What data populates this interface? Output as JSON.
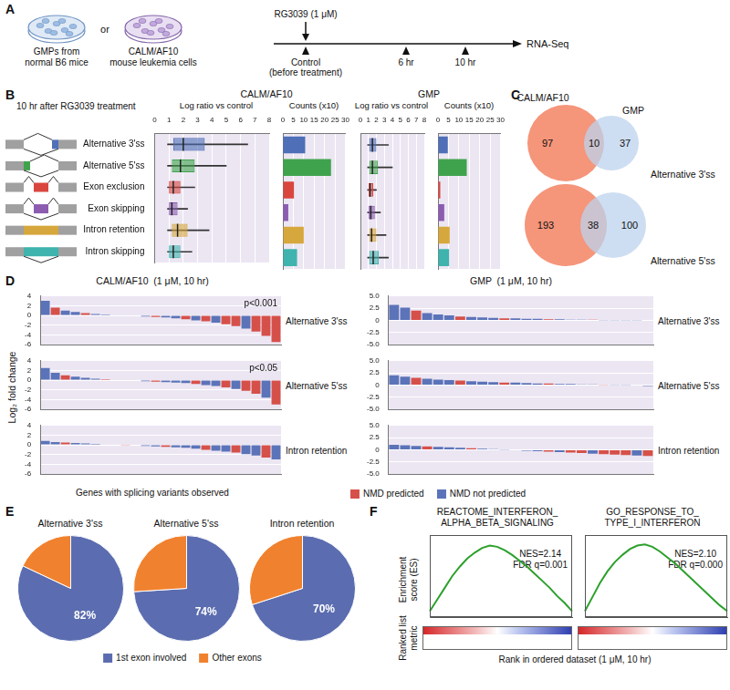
{
  "panel_labels": [
    "A",
    "B",
    "C",
    "D",
    "E",
    "F"
  ],
  "diagram_A": {
    "cells": [
      [
        "GMPs from",
        "normal B6 mice"
      ],
      [
        "CALM/AF10",
        "mouse leukemia cells"
      ]
    ],
    "connector": "or",
    "treatment": "RG3039 (1 μM)",
    "timepoints": [
      [
        "Control",
        "(before treatment)"
      ],
      [
        "6 hr"
      ],
      [
        "10 hr"
      ]
    ],
    "readout": "RNA-Seq"
  },
  "panel_B": {
    "heading": "10 hr after RG3039 treatment",
    "groups": [
      "CALM/AF10",
      "GMP"
    ]
  },
  "venn_C": [
    {
      "left": "CALM/AF10",
      "right": "GMP",
      "title": "Alternative 3'ss",
      "values": [
        97,
        10,
        37
      ]
    },
    {
      "title": "Alternative 5'ss",
      "values": [
        193,
        38,
        100
      ]
    }
  ],
  "panel_D": {
    "headers": [
      "CALM/AF10  (1 μM, 10 hr)",
      "GMP  (1 μM, 10 hr)"
    ],
    "y_label": "Log₂ fold change",
    "x_label": "Genes with splicing variants observed"
  },
  "panel_F": {
    "y_label": [
      "Enrichment",
      "score (ES)"
    ],
    "y2_label": [
      "Ranked list",
      "metric"
    ],
    "x_label": "Rank in ordered dataset (1 μM, 10 hr)"
  },
  "chart_data": [
    {
      "type": "box",
      "title": "Log ratio vs control",
      "orientation": "horizontal",
      "categories": [
        "Alternative 3'ss",
        "Alternative 5'ss",
        "Exon exclusion",
        "Exon skipping",
        "Intron retention",
        "Intron skipping"
      ],
      "boxes": [
        {
          "min": 0.9,
          "q1": 1.3,
          "median": 2.0,
          "q3": 3.5,
          "max": 6.5
        },
        {
          "min": 0.9,
          "q1": 1.2,
          "median": 1.8,
          "q3": 2.8,
          "max": 5.0
        },
        {
          "min": 0.9,
          "q1": 1.0,
          "median": 1.3,
          "q3": 1.8,
          "max": 2.8
        },
        {
          "min": 0.9,
          "q1": 1.0,
          "median": 1.2,
          "q3": 1.6,
          "max": 2.3
        },
        {
          "min": 0.9,
          "q1": 1.2,
          "median": 1.6,
          "q3": 2.3,
          "max": 3.8
        },
        {
          "min": 0.9,
          "q1": 1.0,
          "median": 1.3,
          "q3": 1.8,
          "max": 2.6
        }
      ],
      "colors": [
        "#4f6fb8",
        "#3fa34d",
        "#d9463e",
        "#8b5cb0",
        "#d6a73c",
        "#3fb3ad"
      ],
      "xlim": [
        0,
        8
      ],
      "xticks": [
        0,
        1,
        2,
        3,
        4,
        5,
        6,
        7,
        8
      ],
      "grid": true
    },
    {
      "type": "bar",
      "title": "Counts (x10)",
      "orientation": "horizontal",
      "categories": [
        "Alternative 3'ss",
        "Alternative 5'ss",
        "Exon exclusion",
        "Exon skipping",
        "Intron retention",
        "Intron skipping"
      ],
      "values": [
        10.7,
        23.1,
        5.3,
        2.6,
        10.0,
        6.8
      ],
      "colors": [
        "#4f6fb8",
        "#3fa34d",
        "#d9463e",
        "#8b5cb0",
        "#d6a73c",
        "#3fb3ad"
      ],
      "xlim": [
        0,
        30
      ],
      "xticks": [
        0,
        5,
        10,
        15,
        20,
        25,
        30
      ],
      "grid": true,
      "tick_labels": "x"
    },
    {
      "type": "box",
      "title": "Log ratio vs control",
      "orientation": "horizontal",
      "categories": [
        "Alternative 3'ss",
        "Alternative 5'ss",
        "Exon exclusion",
        "Exon skipping",
        "Intron retention",
        "Intron skipping"
      ],
      "boxes": [
        {
          "min": 0.9,
          "q1": 1.1,
          "median": 1.5,
          "q3": 2.0,
          "max": 3.5
        },
        {
          "min": 0.9,
          "q1": 1.1,
          "median": 1.5,
          "q3": 2.2,
          "max": 4.0
        },
        {
          "min": 0.9,
          "q1": 1.0,
          "median": 1.2,
          "q3": 1.6,
          "max": 2.0
        },
        {
          "min": 0.9,
          "q1": 1.0,
          "median": 1.3,
          "q3": 1.8,
          "max": 2.5
        },
        {
          "min": 0.9,
          "q1": 1.1,
          "median": 1.4,
          "q3": 2.0,
          "max": 3.2
        },
        {
          "min": 0.9,
          "q1": 1.1,
          "median": 1.6,
          "q3": 2.3,
          "max": 3.5
        }
      ],
      "colors": [
        "#4f6fb8",
        "#3fa34d",
        "#d9463e",
        "#8b5cb0",
        "#d6a73c",
        "#3fb3ad"
      ],
      "xlim": [
        0,
        8
      ],
      "xticks": [
        0,
        1,
        2,
        3,
        4,
        5,
        6,
        7,
        8
      ],
      "grid": true,
      "tick_labels": "x"
    },
    {
      "type": "bar",
      "title": "Counts (x10)",
      "orientation": "horizontal",
      "categories": [
        "Alternative 3'ss",
        "Alternative 5'ss",
        "Exon exclusion",
        "Exon skipping",
        "Intron retention",
        "Intron skipping"
      ],
      "values": [
        4.7,
        13.8,
        1.1,
        3.0,
        5.6,
        5.3
      ],
      "colors": [
        "#4f6fb8",
        "#3fa34d",
        "#d9463e",
        "#8b5cb0",
        "#d6a73c",
        "#3fb3ad"
      ],
      "xlim": [
        0,
        30
      ],
      "xticks": [
        0,
        5,
        10,
        15,
        20,
        25,
        30
      ],
      "grid": true,
      "tick_labels": "x"
    },
    {
      "type": "bar",
      "title": "Alternative 3'ss",
      "annotation": "p<0.001",
      "categories": [
        null,
        null,
        null,
        null,
        null,
        null,
        null,
        null,
        null,
        null,
        null,
        null,
        null,
        null,
        null,
        null,
        null,
        null,
        null,
        null,
        null,
        null,
        null,
        null
      ],
      "series": [
        {
          "name": "NMD predicted",
          "color": "#d6504a",
          "values": [
            null,
            1.6,
            null,
            null,
            0.5,
            null,
            null,
            0.1,
            null,
            null,
            null,
            -0.3,
            null,
            null,
            -0.8,
            null,
            -1.2,
            null,
            -1.8,
            -2.2,
            null,
            -3.3,
            -4.2,
            -5.5
          ]
        },
        {
          "name": "NMD not predicted",
          "color": "#5b73b8",
          "values": [
            3.0,
            null,
            1.0,
            0.7,
            null,
            0.3,
            0.2,
            null,
            0.0,
            -0.1,
            -0.2,
            null,
            -0.4,
            -0.6,
            null,
            -1.0,
            null,
            -1.5,
            null,
            null,
            -2.7,
            null,
            null,
            null
          ]
        }
      ],
      "ylim": [
        -6,
        4
      ],
      "yticks": [
        -6,
        -4,
        -2,
        0,
        2,
        4
      ],
      "stacked": true,
      "grid": true,
      "tick_labels": "y"
    },
    {
      "type": "bar",
      "title": "Alternative 5'ss",
      "annotation": "p<0.05",
      "categories": [
        null,
        null,
        null,
        null,
        null,
        null,
        null,
        null,
        null,
        null,
        null,
        null,
        null,
        null,
        null,
        null,
        null,
        null,
        null,
        null,
        null,
        null,
        null,
        null
      ],
      "series": [
        {
          "name": "NMD predicted",
          "color": "#d6504a",
          "values": [
            null,
            null,
            1.0,
            null,
            null,
            null,
            0.2,
            null,
            null,
            null,
            null,
            -0.3,
            null,
            null,
            null,
            -0.8,
            null,
            null,
            -1.5,
            null,
            -2.2,
            -2.8,
            null,
            -5.0
          ]
        },
        {
          "name": "NMD not predicted",
          "color": "#5b73b8",
          "values": [
            2.5,
            1.5,
            null,
            0.7,
            0.5,
            0.3,
            null,
            0.1,
            0.0,
            -0.1,
            -0.2,
            null,
            -0.4,
            -0.5,
            -0.6,
            null,
            -1.0,
            -1.2,
            null,
            -1.8,
            null,
            null,
            -3.6,
            null
          ]
        }
      ],
      "ylim": [
        -6,
        4
      ],
      "yticks": [
        -6,
        -4,
        -2,
        0,
        2,
        4
      ],
      "stacked": true,
      "grid": true,
      "tick_labels": "y"
    },
    {
      "type": "bar",
      "title": "Intron retention",
      "legend": "bottom",
      "categories": [
        null,
        null,
        null,
        null,
        null,
        null,
        null,
        null,
        null,
        null,
        null,
        null,
        null,
        null,
        null,
        null,
        null,
        null,
        null,
        null,
        null,
        null,
        null,
        null
      ],
      "series": [
        {
          "name": "NMD predicted",
          "color": "#d6504a",
          "values": [
            null,
            null,
            0.5,
            null,
            null,
            null,
            null,
            null,
            -0.05,
            null,
            null,
            null,
            -0.4,
            null,
            null,
            null,
            -1.0,
            null,
            null,
            -1.6,
            null,
            null,
            -2.6,
            null
          ]
        },
        {
          "name": "NMD not predicted",
          "color": "#5b73b8",
          "values": [
            0.8,
            0.6,
            null,
            0.4,
            0.3,
            0.2,
            0.1,
            0.0,
            null,
            -0.1,
            -0.2,
            -0.3,
            null,
            -0.5,
            -0.6,
            -0.8,
            null,
            -1.2,
            -1.4,
            null,
            -1.9,
            -2.2,
            null,
            -3.0
          ]
        }
      ],
      "ylim": [
        -6,
        4
      ],
      "yticks": [
        -6,
        -4,
        -2,
        0,
        2,
        4
      ],
      "stacked": true,
      "grid": true,
      "tick_labels": "y"
    },
    {
      "type": "bar",
      "title": "Alternative 3'ss",
      "categories": [
        null,
        null,
        null,
        null,
        null,
        null,
        null,
        null,
        null,
        null,
        null,
        null,
        null,
        null,
        null,
        null,
        null,
        null,
        null,
        null,
        null,
        null,
        null,
        null
      ],
      "series": [
        {
          "name": "NMD predicted",
          "color": "#d6504a",
          "values": [
            null,
            null,
            2.0,
            null,
            null,
            null,
            0.8,
            null,
            null,
            null,
            0.4,
            null,
            null,
            null,
            0.2,
            null,
            null,
            null,
            0.1,
            null,
            null,
            null,
            null,
            null
          ]
        },
        {
          "name": "NMD not predicted",
          "color": "#5b73b8",
          "values": [
            3.2,
            2.6,
            null,
            1.5,
            1.2,
            1.0,
            null,
            0.7,
            0.6,
            0.5,
            null,
            0.4,
            0.3,
            0.3,
            null,
            0.2,
            0.1,
            0.1,
            null,
            0.05,
            0.05,
            0.05,
            -0.05,
            -0.1
          ]
        }
      ],
      "ylim": [
        -5,
        5
      ],
      "yticks": [
        {
          "value": -5,
          "label": "-5.0"
        },
        -2.5,
        0,
        2.5,
        {
          "value": 5,
          "label": "5.0"
        }
      ],
      "stacked": true,
      "grid": true,
      "tick_labels": "y"
    },
    {
      "type": "bar",
      "title": "Alternative 5'ss",
      "categories": [
        null,
        null,
        null,
        null,
        null,
        null,
        null,
        null,
        null,
        null,
        null,
        null,
        null,
        null,
        null,
        null,
        null,
        null,
        null,
        null,
        null,
        null,
        null,
        null
      ],
      "series": [
        {
          "name": "NMD predicted",
          "color": "#d6504a",
          "values": [
            null,
            null,
            1.5,
            null,
            null,
            null,
            0.9,
            null,
            null,
            null,
            0.5,
            null,
            null,
            null,
            0.3,
            null,
            null,
            null,
            null,
            0.05,
            null,
            null,
            null,
            null
          ]
        },
        {
          "name": "NMD not predicted",
          "color": "#5b73b8",
          "values": [
            2.0,
            1.7,
            null,
            1.3,
            1.1,
            1.0,
            null,
            0.8,
            0.7,
            0.6,
            null,
            0.5,
            0.4,
            0.3,
            null,
            0.2,
            0.2,
            0.1,
            0.1,
            null,
            0.05,
            -0.05,
            -0.1,
            -0.2
          ]
        }
      ],
      "ylim": [
        -5,
        5
      ],
      "yticks": [
        {
          "value": -5,
          "label": "-5.0"
        },
        -2.5,
        0,
        2.5,
        {
          "value": 5,
          "label": "5.0"
        }
      ],
      "stacked": true,
      "grid": true,
      "tick_labels": "y"
    },
    {
      "type": "bar",
      "title": "Intron retention",
      "categories": [
        null,
        null,
        null,
        null,
        null,
        null,
        null,
        null,
        null,
        null,
        null,
        null,
        null,
        null,
        null,
        null,
        null,
        null,
        null,
        null,
        null,
        null,
        null,
        null
      ],
      "series": [
        {
          "name": "NMD predicted",
          "color": "#d6504a",
          "values": [
            null,
            null,
            null,
            0.7,
            null,
            null,
            null,
            0.3,
            null,
            null,
            null,
            -0.1,
            null,
            null,
            -0.4,
            null,
            -0.6,
            -0.7,
            null,
            -0.9,
            -1.0,
            -1.1,
            null,
            -1.3
          ]
        },
        {
          "name": "NMD not predicted",
          "color": "#5b73b8",
          "values": [
            1.0,
            0.9,
            0.8,
            null,
            0.6,
            0.5,
            0.4,
            null,
            0.2,
            0.1,
            0.05,
            null,
            -0.2,
            -0.3,
            null,
            -0.5,
            null,
            null,
            -0.8,
            null,
            null,
            null,
            -1.2,
            null
          ]
        }
      ],
      "ylim": [
        -5,
        5
      ],
      "yticks": [
        {
          "value": -5,
          "label": "-5.0"
        },
        -2.5,
        0,
        2.5,
        {
          "value": 5,
          "label": "5.0"
        }
      ],
      "stacked": true,
      "grid": true,
      "tick_labels": "y"
    },
    {
      "type": "pie",
      "title": "Alternative 3'ss",
      "categories": [
        "1st exon involved",
        "Other exons"
      ],
      "values": [
        82,
        18
      ],
      "value_labels": [
        "82%",
        null
      ],
      "colors": [
        "#5b6db0",
        "#f0812e"
      ],
      "data_labels": true
    },
    {
      "type": "pie",
      "title": "Alternative 5'ss",
      "categories": [
        "1st exon involved",
        "Other exons"
      ],
      "values": [
        74,
        26
      ],
      "value_labels": [
        "74%",
        null
      ],
      "colors": [
        "#5b6db0",
        "#f0812e"
      ],
      "data_labels": true
    },
    {
      "type": "pie",
      "title": "Intron retention",
      "categories": [
        "1st exon involved",
        "Other exons"
      ],
      "values": [
        70,
        30
      ],
      "value_labels": [
        "70%",
        null
      ],
      "colors": [
        "#5b6db0",
        "#f0812e"
      ],
      "data_labels": true,
      "legend": "bottom"
    },
    {
      "type": "line",
      "title": [
        "REACTOME_INTERFERON_",
        "ALPHA_BETA_SIGNALING"
      ],
      "annotation": [
        "NES=2.14",
        "FDR q=0.001"
      ],
      "categories": [
        null,
        null,
        null,
        null,
        null,
        null,
        null,
        null,
        null,
        null,
        null,
        null,
        null,
        null,
        null,
        null,
        null,
        null,
        null,
        null
      ],
      "values": [
        0,
        0.1,
        0.2,
        0.3,
        0.38,
        0.45,
        0.5,
        0.54,
        0.56,
        0.55,
        0.52,
        0.48,
        0.43,
        0.38,
        0.32,
        0.26,
        0.2,
        0.13,
        0.07,
        0
      ],
      "color": "#2ca02c",
      "ylim": [
        -0.05,
        0.65
      ],
      "grid": false,
      "tick_labels": false
    },
    {
      "type": "line",
      "title": [
        "GO_RESPONSE_TO_",
        "TYPE_I_INTERFERON"
      ],
      "annotation": [
        "NES=2.10",
        "FDR q=0.000"
      ],
      "categories": [
        null,
        null,
        null,
        null,
        null,
        null,
        null,
        null,
        null,
        null,
        null,
        null,
        null,
        null,
        null,
        null,
        null,
        null,
        null,
        null
      ],
      "values": [
        0,
        0.12,
        0.24,
        0.34,
        0.42,
        0.48,
        0.53,
        0.56,
        0.57,
        0.55,
        0.51,
        0.46,
        0.41,
        0.35,
        0.29,
        0.23,
        0.17,
        0.11,
        0.05,
        0
      ],
      "color": "#2ca02c",
      "ylim": [
        -0.05,
        0.65
      ],
      "grid": false,
      "tick_labels": false
    }
  ]
}
